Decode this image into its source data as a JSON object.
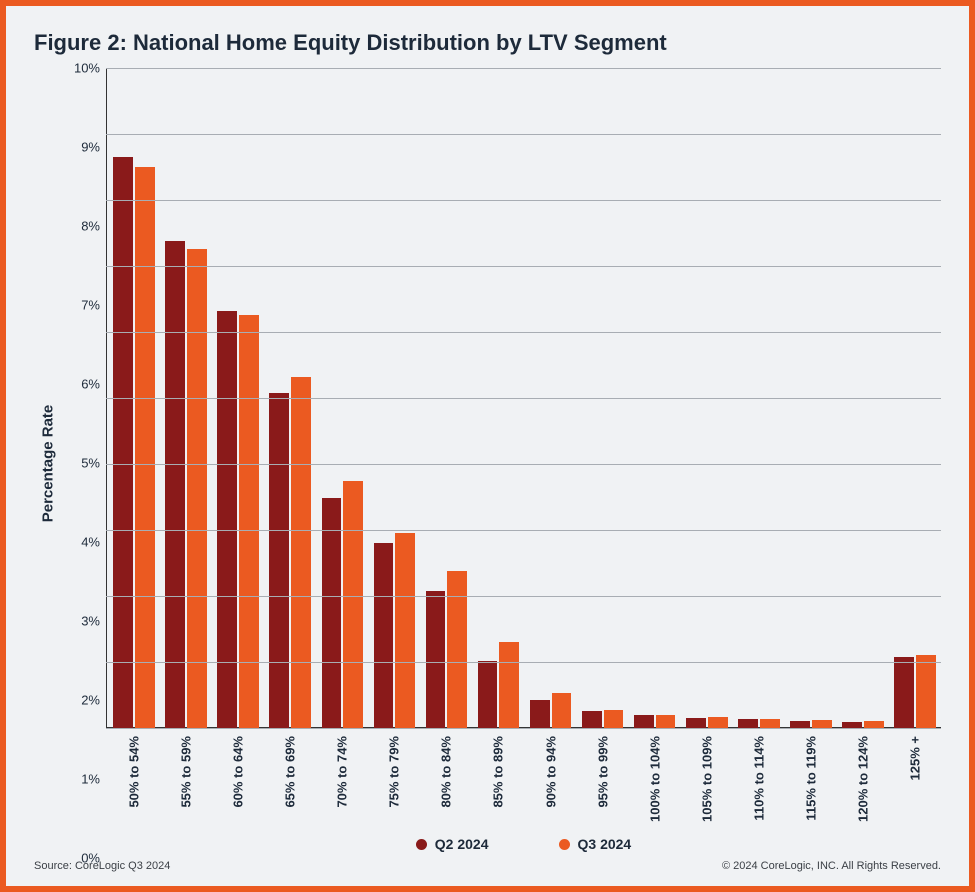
{
  "title": "Figure 2: National Home Equity Distribution by LTV Segment",
  "chart": {
    "type": "bar",
    "ylabel": "Percentage Rate",
    "ylim": [
      0,
      10
    ],
    "ytick_step": 1,
    "ytick_suffix": "%",
    "grid_color": "#a8adb3",
    "background_color": "#f0f2f4",
    "axis_color": "#333333",
    "categories": [
      "50% to 54%",
      "55% to 59%",
      "60% to 64%",
      "65% to 69%",
      "70% to 74%",
      "75% to 79%",
      "80% to 84%",
      "85% to 89%",
      "90% to 94%",
      "95% to 99%",
      "100% to 104%",
      "105% to 109%",
      "110% to 114%",
      "115% to 119%",
      "120% to 124%",
      "125% +"
    ],
    "series": [
      {
        "name": "Q2 2024",
        "color": "#8a1a1a",
        "values": [
          8.65,
          7.38,
          6.32,
          5.08,
          3.48,
          2.8,
          2.08,
          1.02,
          0.42,
          0.26,
          0.2,
          0.15,
          0.13,
          0.11,
          0.09,
          1.08
        ]
      },
      {
        "name": "Q3 2024",
        "color": "#eb5a21",
        "values": [
          8.5,
          7.26,
          6.26,
          5.32,
          3.75,
          2.96,
          2.38,
          1.3,
          0.53,
          0.28,
          0.2,
          0.17,
          0.14,
          0.12,
          0.1,
          1.1
        ]
      }
    ],
    "title_fontsize": 22,
    "ylabel_fontsize": 15,
    "tick_fontsize": 13,
    "legend_fontsize": 14,
    "font_color": "#1d2a3a"
  },
  "frame_border_color": "#eb5a21",
  "footer": {
    "source": "Source: CoreLogic Q3 2024",
    "copyright": "© 2024 CoreLogic, INC. All Rights Reserved."
  }
}
